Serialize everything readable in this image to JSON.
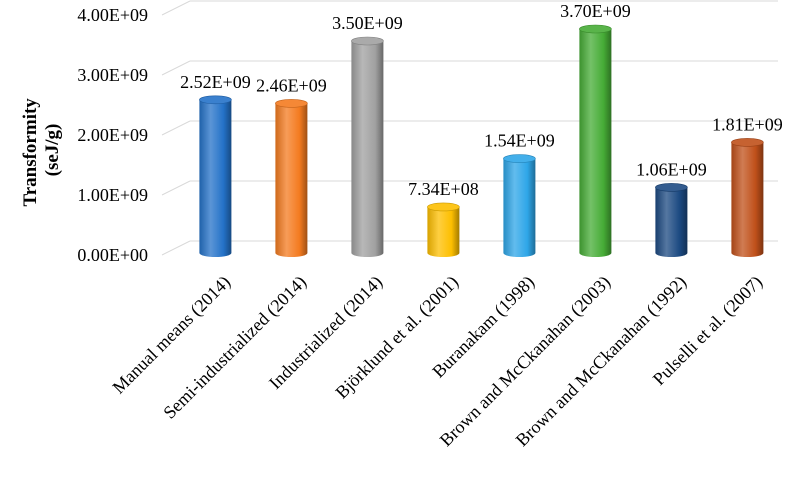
{
  "chart_data": {
    "type": "bar",
    "title": "",
    "xlabel": "",
    "ylabel": "Transformity (seJ/g)",
    "ylabel_lines": [
      "Transformity",
      "(seJ/g)"
    ],
    "ylim": [
      0,
      4000000000
    ],
    "yticks": [
      {
        "value": 0,
        "label": "0.00E+00"
      },
      {
        "value": 1000000000,
        "label": "1.00E+09"
      },
      {
        "value": 2000000000,
        "label": "2.00E+09"
      },
      {
        "value": 3000000000,
        "label": "3.00E+09"
      },
      {
        "value": 4000000000,
        "label": "4.00E+09"
      }
    ],
    "grid": true,
    "categories": [
      "Manual means (2014)",
      "Semi-industrialized (2014)",
      "Industrialized (2014)",
      "Björklund et al. (2001)",
      "Buranakam (1998)",
      "Brown and McCkanahan (2003)",
      "Brown and McCkanahan (1992)",
      "Pulselli et al. (2007)"
    ],
    "values": [
      2520000000,
      2460000000,
      3500000000,
      734000000,
      1540000000,
      3700000000,
      1060000000,
      1810000000
    ],
    "data_labels": [
      "2.52E+09",
      "2.46E+09",
      "3.50E+09",
      "7.34E+08",
      "1.54E+09",
      "3.70E+09",
      "1.06E+09",
      "1.81E+09"
    ],
    "colors": [
      "#2472c8",
      "#f47b20",
      "#a0a0a0",
      "#fdbf00",
      "#2ea6e8",
      "#46ac36",
      "#1c4a82",
      "#c0501a"
    ]
  }
}
